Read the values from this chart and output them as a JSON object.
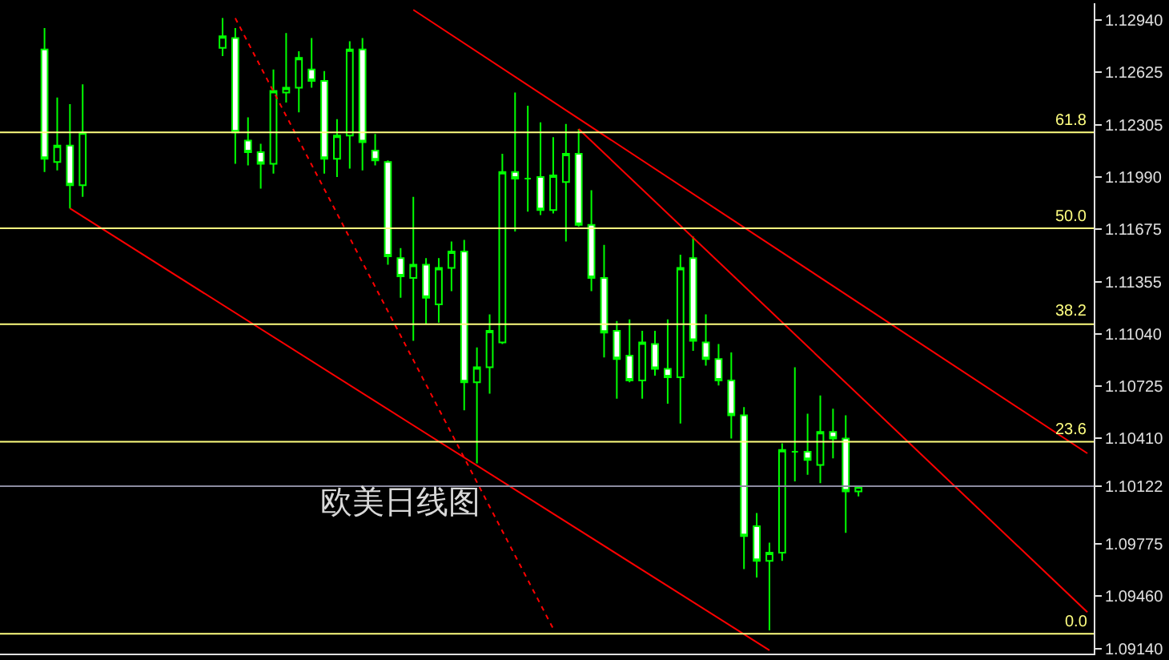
{
  "chart_data": {
    "type": "candlestick",
    "categories": [
      null,
      null,
      null,
      null,
      null,
      null,
      null,
      null,
      null,
      null,
      null,
      null,
      null,
      null,
      null,
      null,
      null,
      null,
      null,
      null,
      null,
      null,
      null,
      null,
      null,
      null,
      null,
      null,
      null,
      null,
      null,
      null,
      null,
      null,
      null,
      null,
      null,
      null,
      null,
      null,
      null,
      null,
      null,
      null,
      null,
      null,
      null,
      null,
      null,
      null,
      null,
      null,
      null,
      null,
      null,
      null,
      null,
      null,
      null,
      null,
      null,
      null,
      null,
      null,
      null,
      null,
      null,
      null,
      null,
      null,
      null,
      null,
      null,
      null,
      null,
      null,
      null,
      null,
      null,
      null,
      null,
      null,
      null,
      null,
      null,
      null
    ],
    "series": [
      {
        "color": "#00ff00",
        "ohlc": [
          null,
          null,
          null,
          [
            1.1276,
            1.1289,
            1.1202,
            1.121
          ],
          [
            1.1208,
            1.1247,
            1.1203,
            1.1218
          ],
          [
            1.1218,
            1.1243,
            1.118,
            1.1194
          ],
          [
            1.1194,
            1.1255,
            1.1187,
            1.1226
          ],
          null,
          null,
          null,
          null,
          null,
          null,
          null,
          null,
          null,
          null,
          [
            1.1277,
            1.1295,
            1.1272,
            1.1284
          ],
          [
            1.1283,
            1.1289,
            1.1207,
            1.1226
          ],
          [
            1.1221,
            1.1235,
            1.1206,
            1.1214
          ],
          [
            1.1214,
            1.1219,
            1.1192,
            1.1207
          ],
          [
            1.1207,
            1.1264,
            1.1201,
            1.1251
          ],
          [
            1.125,
            1.1286,
            1.1244,
            1.1253
          ],
          [
            1.1253,
            1.1275,
            1.1238,
            1.1271
          ],
          [
            1.1264,
            1.1283,
            1.1253,
            1.1257
          ],
          [
            1.1257,
            1.1263,
            1.1201,
            1.121
          ],
          [
            1.121,
            1.1234,
            1.1199,
            1.1224
          ],
          [
            1.1224,
            1.1281,
            1.1204,
            1.1276
          ],
          [
            1.1276,
            1.1283,
            1.1203,
            1.122
          ],
          [
            1.1215,
            1.1225,
            1.1206,
            1.1209
          ],
          [
            1.1208,
            1.1209,
            1.1146,
            1.1151
          ],
          [
            1.115,
            1.1156,
            1.1126,
            1.1139
          ],
          [
            1.1138,
            1.1187,
            1.11,
            1.1146
          ],
          [
            1.1146,
            1.115,
            1.111,
            1.1126
          ],
          [
            1.1122,
            1.115,
            1.1111,
            1.1144
          ],
          [
            1.1144,
            1.116,
            1.113,
            1.1154
          ],
          [
            1.1154,
            1.1161,
            1.1058,
            1.1075
          ],
          [
            1.1075,
            1.1096,
            1.1026,
            1.1084
          ],
          [
            1.1084,
            1.1116,
            1.1068,
            1.1106
          ],
          [
            1.1099,
            1.1213,
            1.1098,
            1.1202
          ],
          [
            1.1202,
            1.125,
            1.1166,
            1.1198
          ],
          [
            1.1198,
            1.1242,
            1.1178,
            1.1198
          ],
          [
            1.1199,
            1.1232,
            1.1176,
            1.1179
          ],
          [
            1.1179,
            1.1223,
            1.1177,
            1.12
          ],
          [
            1.1196,
            1.1231,
            1.116,
            1.1213
          ],
          [
            1.1213,
            1.1228,
            1.1169,
            1.117
          ],
          [
            1.117,
            1.1191,
            1.113,
            1.1138
          ],
          [
            1.1138,
            1.1158,
            1.109,
            1.1105
          ],
          [
            1.1106,
            1.1112,
            1.1065,
            1.1089
          ],
          [
            1.1091,
            1.1113,
            1.1075,
            1.1076
          ],
          [
            1.1076,
            1.1106,
            1.1065,
            1.1099
          ],
          [
            1.1098,
            1.1106,
            1.1079,
            1.1083
          ],
          [
            1.1083,
            1.1113,
            1.1062,
            1.1078
          ],
          [
            1.1078,
            1.1152,
            1.105,
            1.1144
          ],
          [
            1.115,
            1.1163,
            1.1094,
            1.11
          ],
          [
            1.1099,
            1.1116,
            1.1085,
            1.1089
          ],
          [
            1.1089,
            1.1098,
            1.1073,
            1.1076
          ],
          [
            1.1076,
            1.1093,
            1.1041,
            1.1055
          ],
          [
            1.1055,
            1.106,
            1.0962,
            1.0982
          ],
          [
            1.0988,
            1.0996,
            1.0957,
            1.0967
          ],
          [
            1.0967,
            1.0978,
            1.0925,
            1.0972
          ],
          [
            1.0972,
            1.1038,
            1.0967,
            1.1034
          ],
          [
            1.1033,
            1.1084,
            1.1015,
            1.1033
          ],
          [
            1.1033,
            1.1056,
            1.1019,
            1.1028
          ],
          [
            1.1025,
            1.1067,
            1.1014,
            1.1045
          ],
          [
            1.1045,
            1.1059,
            1.1029,
            1.1041
          ],
          [
            1.1041,
            1.1055,
            1.0984,
            1.1009
          ],
          [
            1.1009,
            1.1012,
            1.1006,
            1.1012
          ],
          null,
          null,
          null,
          null,
          null,
          null,
          null,
          null,
          null,
          null,
          null,
          null,
          null,
          null,
          null,
          null,
          null,
          null
        ]
      },
      {
        "type": "line",
        "color": "#ff0000",
        "line_style": "solid",
        "values": [
          null,
          null,
          null,
          null,
          null,
          1.118,
          null,
          null,
          null,
          null,
          null,
          null,
          null,
          null,
          null,
          null,
          null,
          null,
          null,
          null,
          null,
          null,
          null,
          null,
          null,
          null,
          null,
          null,
          null,
          null,
          null,
          null,
          null,
          null,
          null,
          null,
          null,
          null,
          null,
          null,
          null,
          null,
          null,
          null,
          null,
          null,
          null,
          null,
          null,
          null,
          null,
          null,
          null,
          null,
          null,
          null,
          null,
          null,
          null,
          null,
          1.0913,
          null,
          null,
          null,
          null,
          null,
          null,
          null,
          null,
          null,
          null,
          null,
          null,
          null,
          null,
          null,
          null,
          null,
          null,
          null,
          null,
          null,
          null,
          null,
          null,
          null
        ]
      },
      {
        "type": "line",
        "color": "#ff0000",
        "line_style": "solid",
        "values": [
          null,
          null,
          null,
          null,
          null,
          null,
          null,
          null,
          null,
          null,
          null,
          null,
          null,
          null,
          null,
          null,
          null,
          null,
          null,
          null,
          null,
          null,
          null,
          null,
          null,
          null,
          null,
          null,
          null,
          null,
          null,
          null,
          1.13,
          null,
          null,
          null,
          null,
          null,
          null,
          null,
          null,
          null,
          null,
          null,
          null,
          null,
          null,
          null,
          null,
          null,
          null,
          null,
          null,
          null,
          null,
          null,
          null,
          null,
          null,
          null,
          null,
          null,
          null,
          null,
          null,
          null,
          null,
          null,
          null,
          null,
          null,
          null,
          null,
          null,
          null,
          null,
          null,
          null,
          null,
          null,
          null,
          null,
          null,
          null,
          null,
          1.1032
        ]
      },
      {
        "type": "line",
        "color": "#ff0000",
        "line_style": "solid",
        "values": [
          null,
          null,
          null,
          null,
          null,
          null,
          null,
          null,
          null,
          null,
          null,
          null,
          null,
          null,
          null,
          null,
          null,
          null,
          null,
          null,
          null,
          null,
          null,
          null,
          null,
          null,
          null,
          null,
          null,
          null,
          null,
          null,
          null,
          null,
          null,
          null,
          null,
          null,
          null,
          null,
          null,
          null,
          null,
          null,
          null,
          1.1228,
          null,
          null,
          null,
          null,
          null,
          null,
          null,
          null,
          null,
          null,
          null,
          null,
          null,
          null,
          null,
          null,
          null,
          null,
          null,
          null,
          null,
          null,
          null,
          null,
          null,
          null,
          null,
          null,
          null,
          null,
          null,
          null,
          null,
          null,
          null,
          null,
          null,
          null,
          null,
          1.0936
        ]
      },
      {
        "type": "line",
        "color": "#ff0000",
        "line_style": "dotted",
        "values": [
          null,
          null,
          null,
          null,
          null,
          null,
          null,
          null,
          null,
          null,
          null,
          null,
          null,
          null,
          null,
          null,
          null,
          null,
          1.1295,
          null,
          null,
          null,
          null,
          null,
          null,
          null,
          null,
          null,
          null,
          null,
          null,
          null,
          null,
          null,
          null,
          null,
          null,
          null,
          null,
          null,
          null,
          null,
          null,
          1.0926,
          null,
          null,
          null,
          null,
          null,
          null,
          null,
          null,
          null,
          null,
          null,
          null,
          null,
          null,
          null,
          null,
          null,
          null,
          null,
          null,
          null,
          null,
          null,
          null,
          null,
          null,
          null,
          null,
          null,
          null,
          null,
          null,
          null,
          null,
          null,
          null,
          null,
          null,
          null,
          null,
          null,
          null
        ]
      }
    ],
    "ref_lines": [
      {
        "axis": "y",
        "value": 1.1226,
        "color": "#ffff80"
      },
      {
        "axis": "y",
        "value": 1.1168,
        "color": "#ffff80"
      },
      {
        "axis": "y",
        "value": 1.111,
        "color": "#ffff80"
      },
      {
        "axis": "y",
        "value": 1.1039,
        "color": "#ffff80"
      },
      {
        "axis": "y",
        "value": 1.0923,
        "color": "#ffff80"
      },
      {
        "axis": "y",
        "value": 1.10122,
        "color": "#8c8ca0"
      }
    ],
    "annotations": [
      "欧美日线图",
      {
        "text": "61.8",
        "y": 1.1226
      },
      {
        "text": "50.0",
        "y": 1.1168
      },
      {
        "text": "38.2",
        "y": 1.111
      },
      {
        "text": "23.6",
        "y": 1.1039
      },
      {
        "text": "0.0",
        "y": 1.0923
      }
    ],
    "ylim": [
      1.0911,
      1.1304
    ],
    "yticks": [
      {
        "value": 1.1294,
        "label": "1.12940"
      },
      {
        "value": 1.12625,
        "label": "1.12625"
      },
      {
        "value": 1.12305,
        "label": "1.12305"
      },
      {
        "value": 1.1199,
        "label": "1.11990"
      },
      {
        "value": 1.11675,
        "label": "1.11675"
      },
      {
        "value": 1.11355,
        "label": "1.11355"
      },
      {
        "value": 1.1104,
        "label": "1.11040"
      },
      {
        "value": 1.10725,
        "label": "1.10725"
      },
      {
        "value": 1.1041,
        "label": "1.10410"
      },
      {
        "value": 1.10122,
        "label": "1.10122"
      },
      {
        "value": 1.09775,
        "label": "1.09775"
      },
      {
        "value": 1.0946,
        "label": "1.09460"
      },
      {
        "value": 1.0914,
        "label": "1.09140"
      }
    ],
    "tick_labels": "y",
    "grid": false
  }
}
